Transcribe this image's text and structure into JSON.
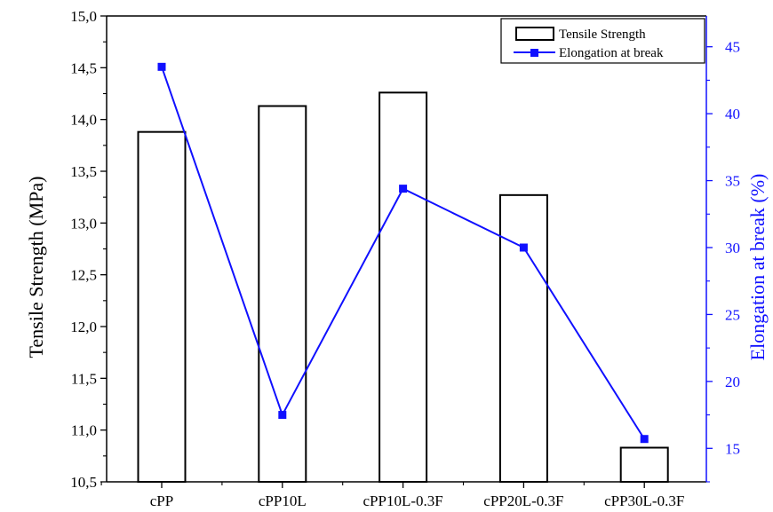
{
  "chart_data": {
    "type": "bar+line",
    "categories": [
      "cPP",
      "cPP10L",
      "cPP10L-0.3F",
      "cPP20L-0.3F",
      "cPP30L-0.3F"
    ],
    "series": [
      {
        "name": "Tensile Strength",
        "kind": "bar",
        "axis": "left",
        "values": [
          13.88,
          14.13,
          14.26,
          13.27,
          10.83
        ],
        "color": "#000000"
      },
      {
        "name": "Elongation at break",
        "kind": "line",
        "axis": "right",
        "values": [
          43.5,
          17.5,
          34.4,
          30.0,
          15.7
        ],
        "color": "#1010ff"
      }
    ],
    "ylabel": "Tensile Strength (MPa)",
    "ylabel_right": "Elongation at break (%)",
    "ylim": [
      10.5,
      15.0
    ],
    "ylim_right": [
      12.5,
      47.3
    ],
    "yticks": [
      "10,5",
      "11,0",
      "11,5",
      "12,0",
      "12,5",
      "13,0",
      "13,5",
      "14,0",
      "14,5",
      "15,0"
    ],
    "yticks_right": [
      "15",
      "20",
      "25",
      "30",
      "35",
      "40",
      "45"
    ],
    "legend_position": "top-right",
    "grid": false
  }
}
